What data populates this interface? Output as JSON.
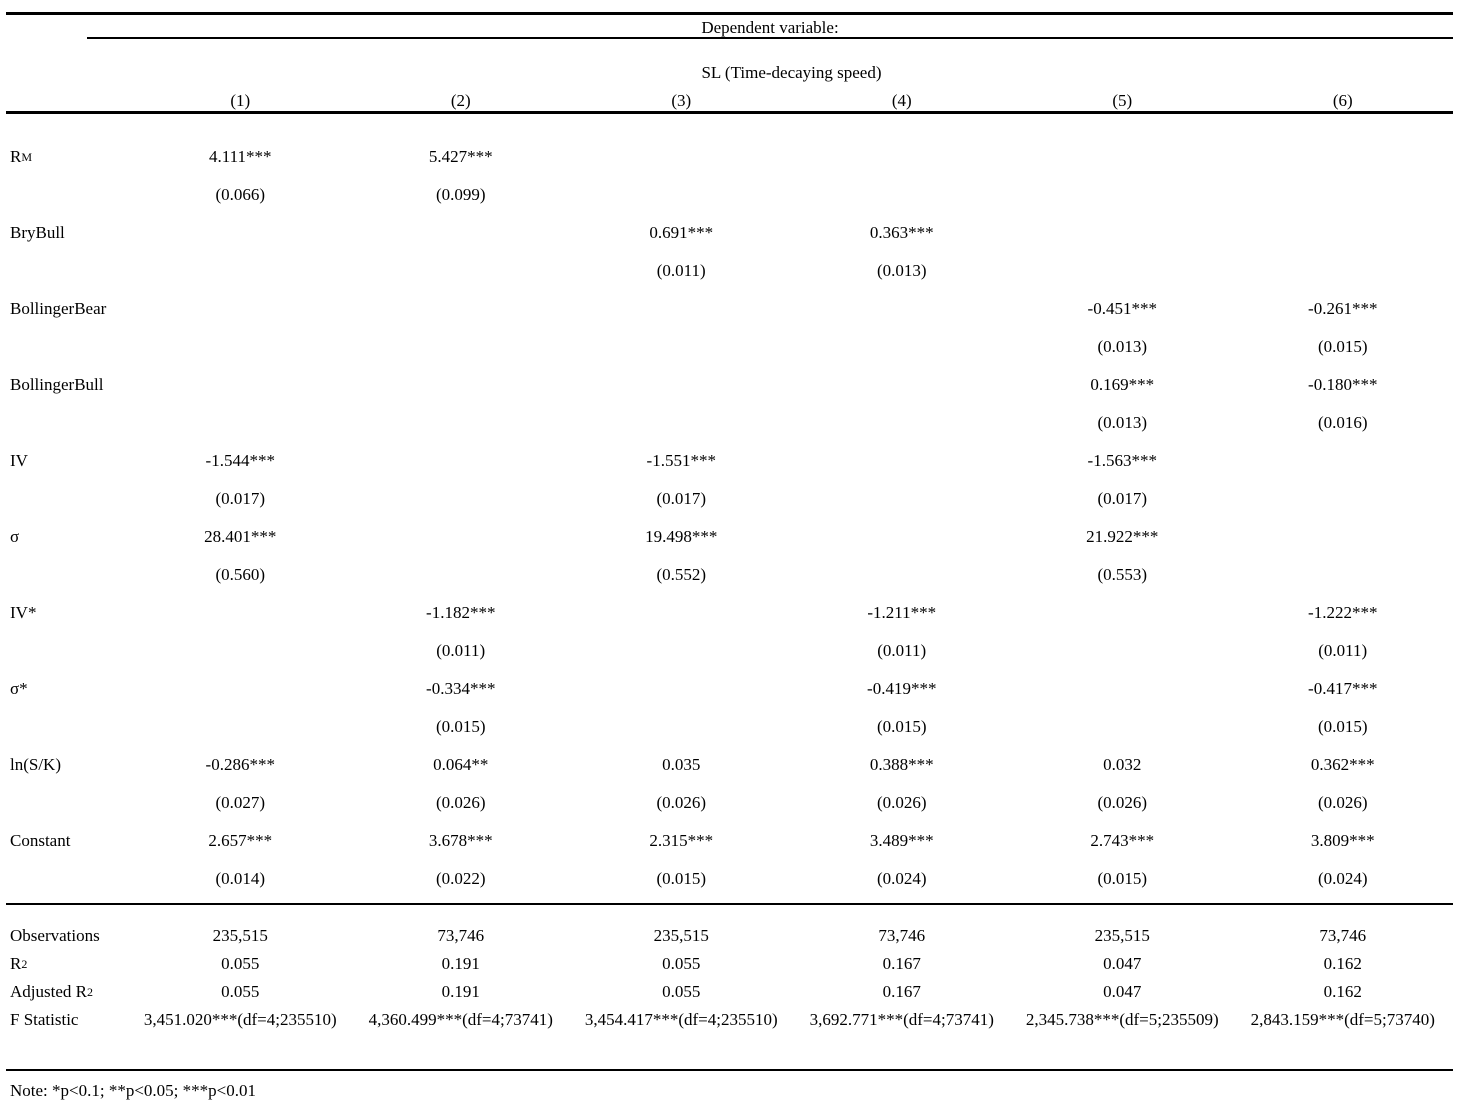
{
  "title_block": {
    "dependent_variable_label": "Dependent variable:",
    "dependent_variable_name": "SL (Time-decaying speed)"
  },
  "columns": [
    "(1)",
    "(2)",
    "(3)",
    "(4)",
    "(5)",
    "(6)"
  ],
  "coefficients": [
    {
      "label": "R",
      "sup": "M",
      "cells": [
        {
          "est": "4.111***",
          "se": "(0.066)"
        },
        {
          "est": "5.427***",
          "se": "(0.099)"
        },
        null,
        null,
        null,
        null
      ]
    },
    {
      "label": "BryBull",
      "cells": [
        null,
        null,
        {
          "est": "0.691***",
          "se": "(0.011)"
        },
        {
          "est": "0.363***",
          "se": "(0.013)"
        },
        null,
        null
      ]
    },
    {
      "label": "BollingerBear",
      "cells": [
        null,
        null,
        null,
        null,
        {
          "est": "-0.451***",
          "se": "(0.013)"
        },
        {
          "est": "-0.261***",
          "se": "(0.015)"
        }
      ]
    },
    {
      "label": "BollingerBull",
      "cells": [
        null,
        null,
        null,
        null,
        {
          "est": "0.169***",
          "se": "(0.013)"
        },
        {
          "est": "-0.180***",
          "se": "(0.016)"
        }
      ]
    },
    {
      "label": "IV",
      "cells": [
        {
          "est": "-1.544***",
          "se": "(0.017)"
        },
        null,
        {
          "est": "-1.551***",
          "se": "(0.017)"
        },
        null,
        {
          "est": "-1.563***",
          "se": "(0.017)"
        },
        null
      ]
    },
    {
      "label": "σ",
      "cells": [
        {
          "est": "28.401***",
          "se": "(0.560)"
        },
        null,
        {
          "est": "19.498***",
          "se": "(0.552)"
        },
        null,
        {
          "est": "21.922***",
          "se": "(0.553)"
        },
        null
      ]
    },
    {
      "label": "IV*",
      "cells": [
        null,
        {
          "est": "-1.182***",
          "se": "(0.011)"
        },
        null,
        {
          "est": "-1.211***",
          "se": "(0.011)"
        },
        null,
        {
          "est": "-1.222***",
          "se": "(0.011)"
        }
      ]
    },
    {
      "label": "σ*",
      "cells": [
        null,
        {
          "est": "-0.334***",
          "se": "(0.015)"
        },
        null,
        {
          "est": "-0.419***",
          "se": "(0.015)"
        },
        null,
        {
          "est": "-0.417***",
          "se": "(0.015)"
        }
      ]
    },
    {
      "label": "ln(S/K)",
      "cells": [
        {
          "est": "-0.286***",
          "se": "(0.027)"
        },
        {
          "est": "0.064**",
          "se": "(0.026)"
        },
        {
          "est": "0.035",
          "se": "(0.026)"
        },
        {
          "est": "0.388***",
          "se": "(0.026)"
        },
        {
          "est": "0.032",
          "se": "(0.026)"
        },
        {
          "est": "0.362***",
          "se": "(0.026)"
        }
      ]
    },
    {
      "label": "Constant",
      "cells": [
        {
          "est": "2.657***",
          "se": "(0.014)"
        },
        {
          "est": "3.678***",
          "se": "(0.022)"
        },
        {
          "est": "2.315***",
          "se": "(0.015)"
        },
        {
          "est": "3.489***",
          "se": "(0.024)"
        },
        {
          "est": "2.743***",
          "se": "(0.015)"
        },
        {
          "est": "3.809***",
          "se": "(0.024)"
        }
      ]
    }
  ],
  "statistics": [
    {
      "label": "Observations",
      "values": [
        "235,515",
        "73,746",
        "235,515",
        "73,746",
        "235,515",
        "73,746"
      ]
    },
    {
      "label": "R",
      "sup": "2",
      "values": [
        "0.055",
        "0.191",
        "0.055",
        "0.167",
        "0.047",
        "0.162"
      ]
    },
    {
      "label": "Adjusted R",
      "sup": "2",
      "values": [
        "0.055",
        "0.191",
        "0.055",
        "0.167",
        "0.047",
        "0.162"
      ]
    },
    {
      "label": "F Statistic",
      "values": [
        "3,451.020***(df=4;235510)",
        "4,360.499***(df=4;73741)",
        "3,454.417***(df=4;235510)",
        "3,692.771***(df=4;73741)",
        "2,345.738***(df=5;235509)",
        "2,843.159***(df=5;73740)"
      ]
    }
  ],
  "note": "Note: *p<0.1; **p<0.05; ***p<0.01"
}
